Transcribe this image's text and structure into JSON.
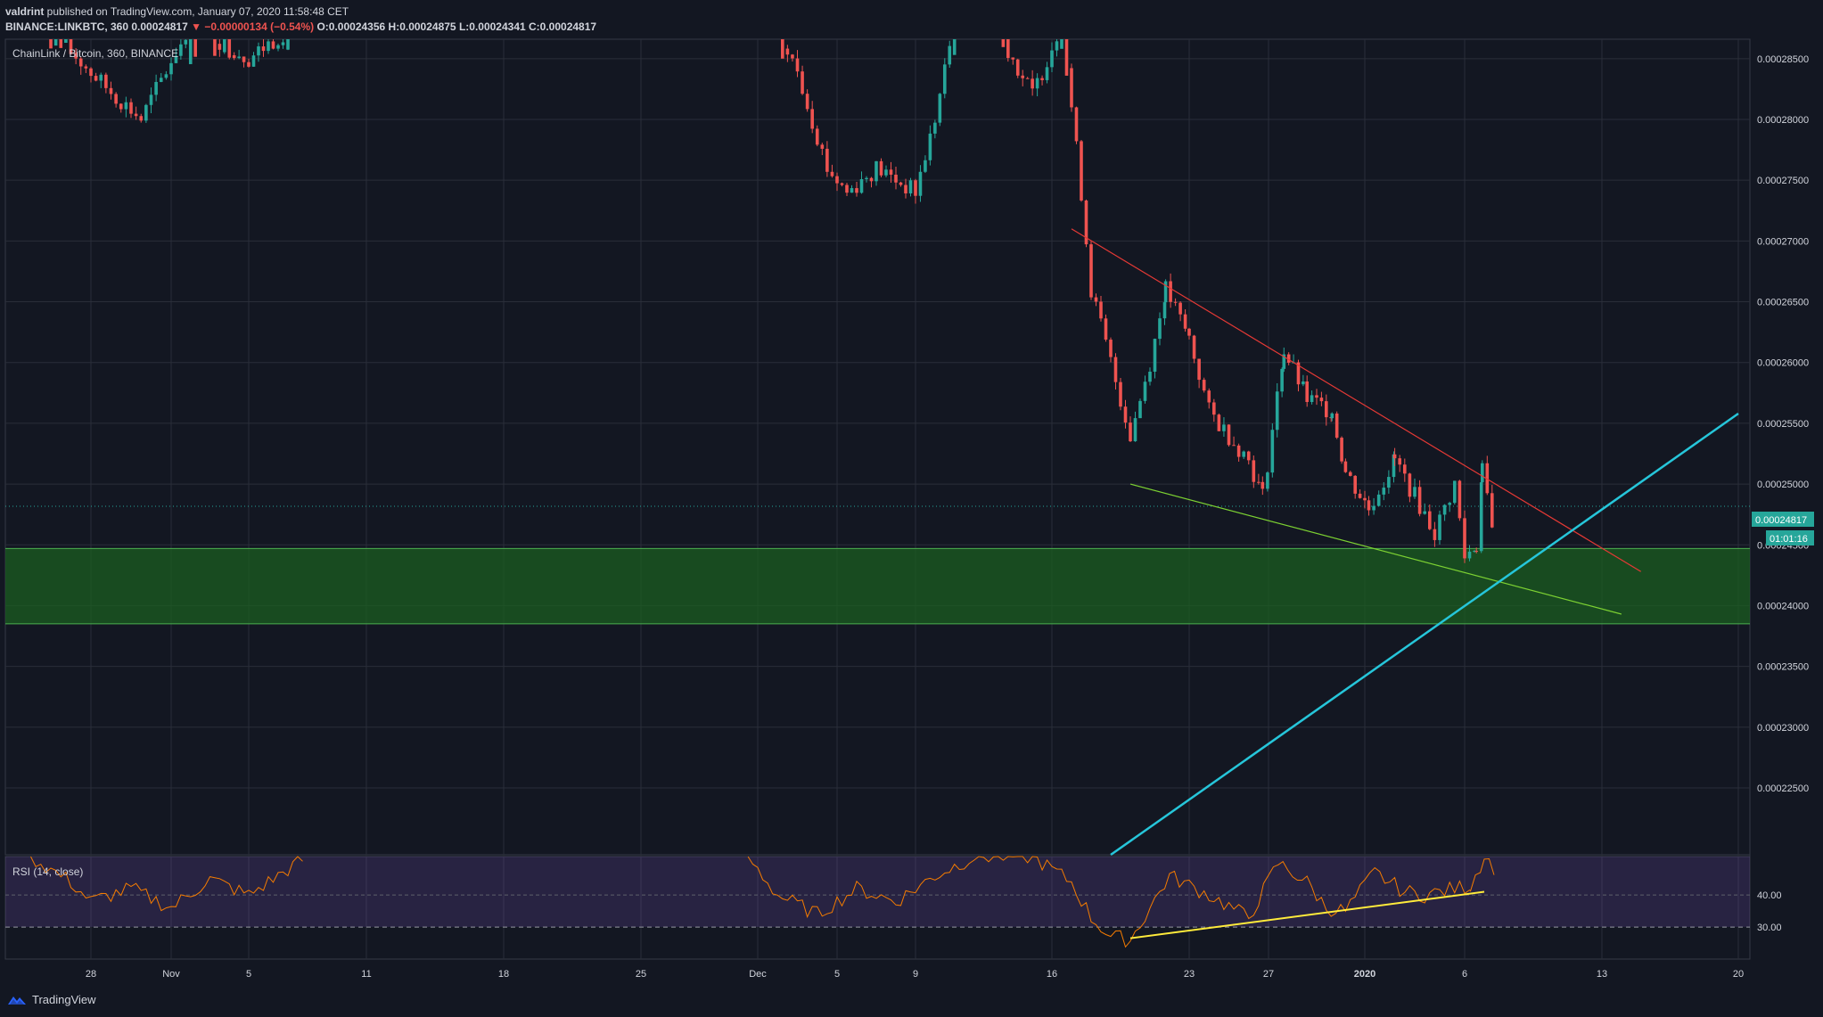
{
  "header": {
    "line1": {
      "author": "valdrint",
      "text": " published on TradingView.com, January 07, 2020 11:58:48 CET"
    },
    "line2": {
      "symbol": "BINANCE:LINKBTC, 360",
      "price": "0.00024817",
      "arrow": "▼",
      "change": "−0.00000134 (−0.54%)",
      "open": "O:0.00024356",
      "high": "H:0.00024875",
      "low": "L:0.00024341",
      "close": "C:0.00024817"
    }
  },
  "chart": {
    "legend": "ChainLink / Bitcoin, 360, BINANCE",
    "price_label": "0.00024817",
    "countdown": "01:01:16",
    "rsi_label": "RSI (14, close)",
    "colors": {
      "up": "#26a69a",
      "down": "#ef5350",
      "bg": "#131722",
      "grid": "#2a2e39",
      "rsi": "#f57c00",
      "rsi_band": "#7e57c2",
      "zone": "#1b5e20",
      "cyan": "#26c6da",
      "yellow": "#ffeb3b"
    }
  },
  "footer": {
    "brand": "TradingView"
  },
  "chart_data": {
    "type": "candlestick",
    "title": "ChainLink / Bitcoin, 360, BINANCE",
    "x_tick_labels": [
      "28",
      "Nov",
      "5",
      "11",
      "18",
      "25",
      "Dec",
      "5",
      "9",
      "16",
      "23",
      "27",
      "2020",
      "6",
      "13",
      "20"
    ],
    "y_tick_labels": [
      "0.00028500",
      "0.00028000",
      "0.00027500",
      "0.00027000",
      "0.00026500",
      "0.00026000",
      "0.00025500",
      "0.00025000",
      "0.00024500",
      "0.00024000",
      "0.00023500",
      "0.00023000",
      "0.00022500"
    ],
    "ylim": [
      0.0002195,
      0.0002866
    ],
    "last_price": 0.00024817,
    "support_zone": [
      0.0002385,
      0.0002447
    ],
    "trendlines": [
      {
        "color": "red",
        "from": [
          "Dec 17",
          0.000271
        ],
        "to": [
          "Jan 15",
          0.0002428
        ]
      },
      {
        "color": "green",
        "from": [
          "Dec 20",
          0.00025
        ],
        "to": [
          "Jan 14",
          0.0002393
        ]
      },
      {
        "color": "cyan",
        "from": [
          "Dec 19",
          0.0002195
        ],
        "to": [
          "Jan 20",
          0.0002558
        ]
      }
    ],
    "rsi": {
      "label": "RSI (14, close)",
      "levels": [
        40,
        30
      ],
      "level_labels": [
        "40.00",
        "30.00"
      ],
      "bullish_divergence_line": {
        "from": [
          "Dec 20",
          26.5
        ],
        "to": [
          "Jan 7",
          41
        ]
      }
    }
  }
}
